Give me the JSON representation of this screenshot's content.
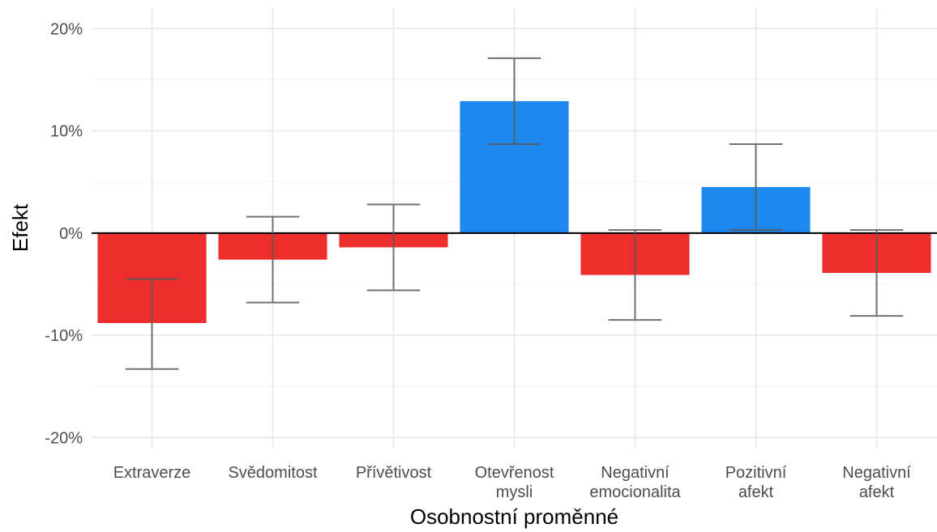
{
  "chart_data": {
    "type": "bar",
    "title": "",
    "xlabel": "Osobnostní proměnné",
    "ylabel": "Efekt",
    "categories": [
      [
        "Extraverze"
      ],
      [
        "Svědomitost"
      ],
      [
        "Přívětivost"
      ],
      [
        "Otevřenost",
        "mysli"
      ],
      [
        "Negativní",
        "emocionalita"
      ],
      [
        "Pozitivní",
        "afekt"
      ],
      [
        "Negativní",
        "afekt"
      ]
    ],
    "values": [
      -8.8,
      -2.6,
      -1.4,
      12.9,
      -4.1,
      4.5,
      -3.9
    ],
    "error_low": [
      -13.3,
      -6.8,
      -5.6,
      8.7,
      -8.5,
      0.3,
      -8.1
    ],
    "error_high": [
      -4.5,
      1.6,
      2.8,
      17.1,
      0.3,
      8.7,
      0.3
    ],
    "ylim": [
      -21,
      22
    ],
    "yticks": [
      -20,
      -10,
      0,
      10,
      20
    ],
    "ytick_labels": [
      "-20%",
      "-10%",
      "0%",
      "10%",
      "20%"
    ],
    "grid": true,
    "legend": "none",
    "colors": {
      "positive": "#1e88ef",
      "negative": "#ee2d2d",
      "errorbar": "#5a5a5a",
      "zero_line": "#000000",
      "grid": "#ebebeb"
    }
  }
}
